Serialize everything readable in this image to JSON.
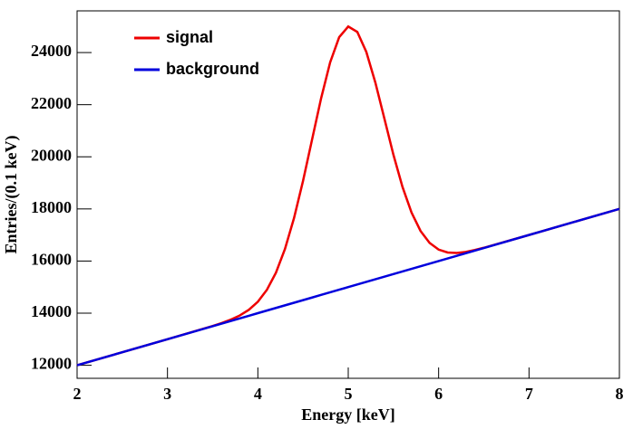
{
  "chart_data": {
    "type": "line",
    "x_label": "Energy [keV]",
    "y_label": "Entries/(0.1 keV)",
    "x": [
      2,
      2.5,
      3,
      3.5,
      3.6,
      3.7,
      3.8,
      3.9,
      4.0,
      4.1,
      4.2,
      4.3,
      4.4,
      4.5,
      4.6,
      4.7,
      4.8,
      4.9,
      5.0,
      5.1,
      5.2,
      5.3,
      5.4,
      5.5,
      5.6,
      5.7,
      5.8,
      5.9,
      6.0,
      6.1,
      6.2,
      6.3,
      6.4,
      6.5,
      7,
      7.5,
      8
    ],
    "series": [
      {
        "name": "signal",
        "color": "#ee0000",
        "values": [
          12000,
          12500,
          13000,
          13509,
          13622,
          13751,
          13911,
          14128,
          14439,
          14896,
          15553,
          16463,
          17647,
          19078,
          20665,
          22248,
          23625,
          24592,
          25000,
          24792,
          24025,
          22848,
          21465,
          20078,
          18847,
          17863,
          17153,
          16696,
          16439,
          16328,
          16311,
          16351,
          16422,
          16509,
          17000,
          17500,
          18000
        ]
      },
      {
        "name": "background",
        "color": "#0000dd",
        "values": [
          12000,
          12500,
          13000,
          13500,
          13600,
          13700,
          13800,
          13900,
          14000,
          14100,
          14200,
          14300,
          14400,
          14500,
          14600,
          14700,
          14800,
          14900,
          15000,
          15100,
          15200,
          15300,
          15400,
          15500,
          15600,
          15700,
          15800,
          15900,
          16000,
          16100,
          16200,
          16300,
          16400,
          16500,
          17000,
          17500,
          18000
        ]
      }
    ],
    "xlim": [
      2,
      8
    ],
    "xticks": [
      2,
      3,
      4,
      5,
      6,
      7,
      8
    ],
    "ylim": [
      11500,
      25600
    ],
    "yticks": [
      12000,
      14000,
      16000,
      18000,
      20000,
      22000,
      24000
    ],
    "legend": "top-left"
  }
}
